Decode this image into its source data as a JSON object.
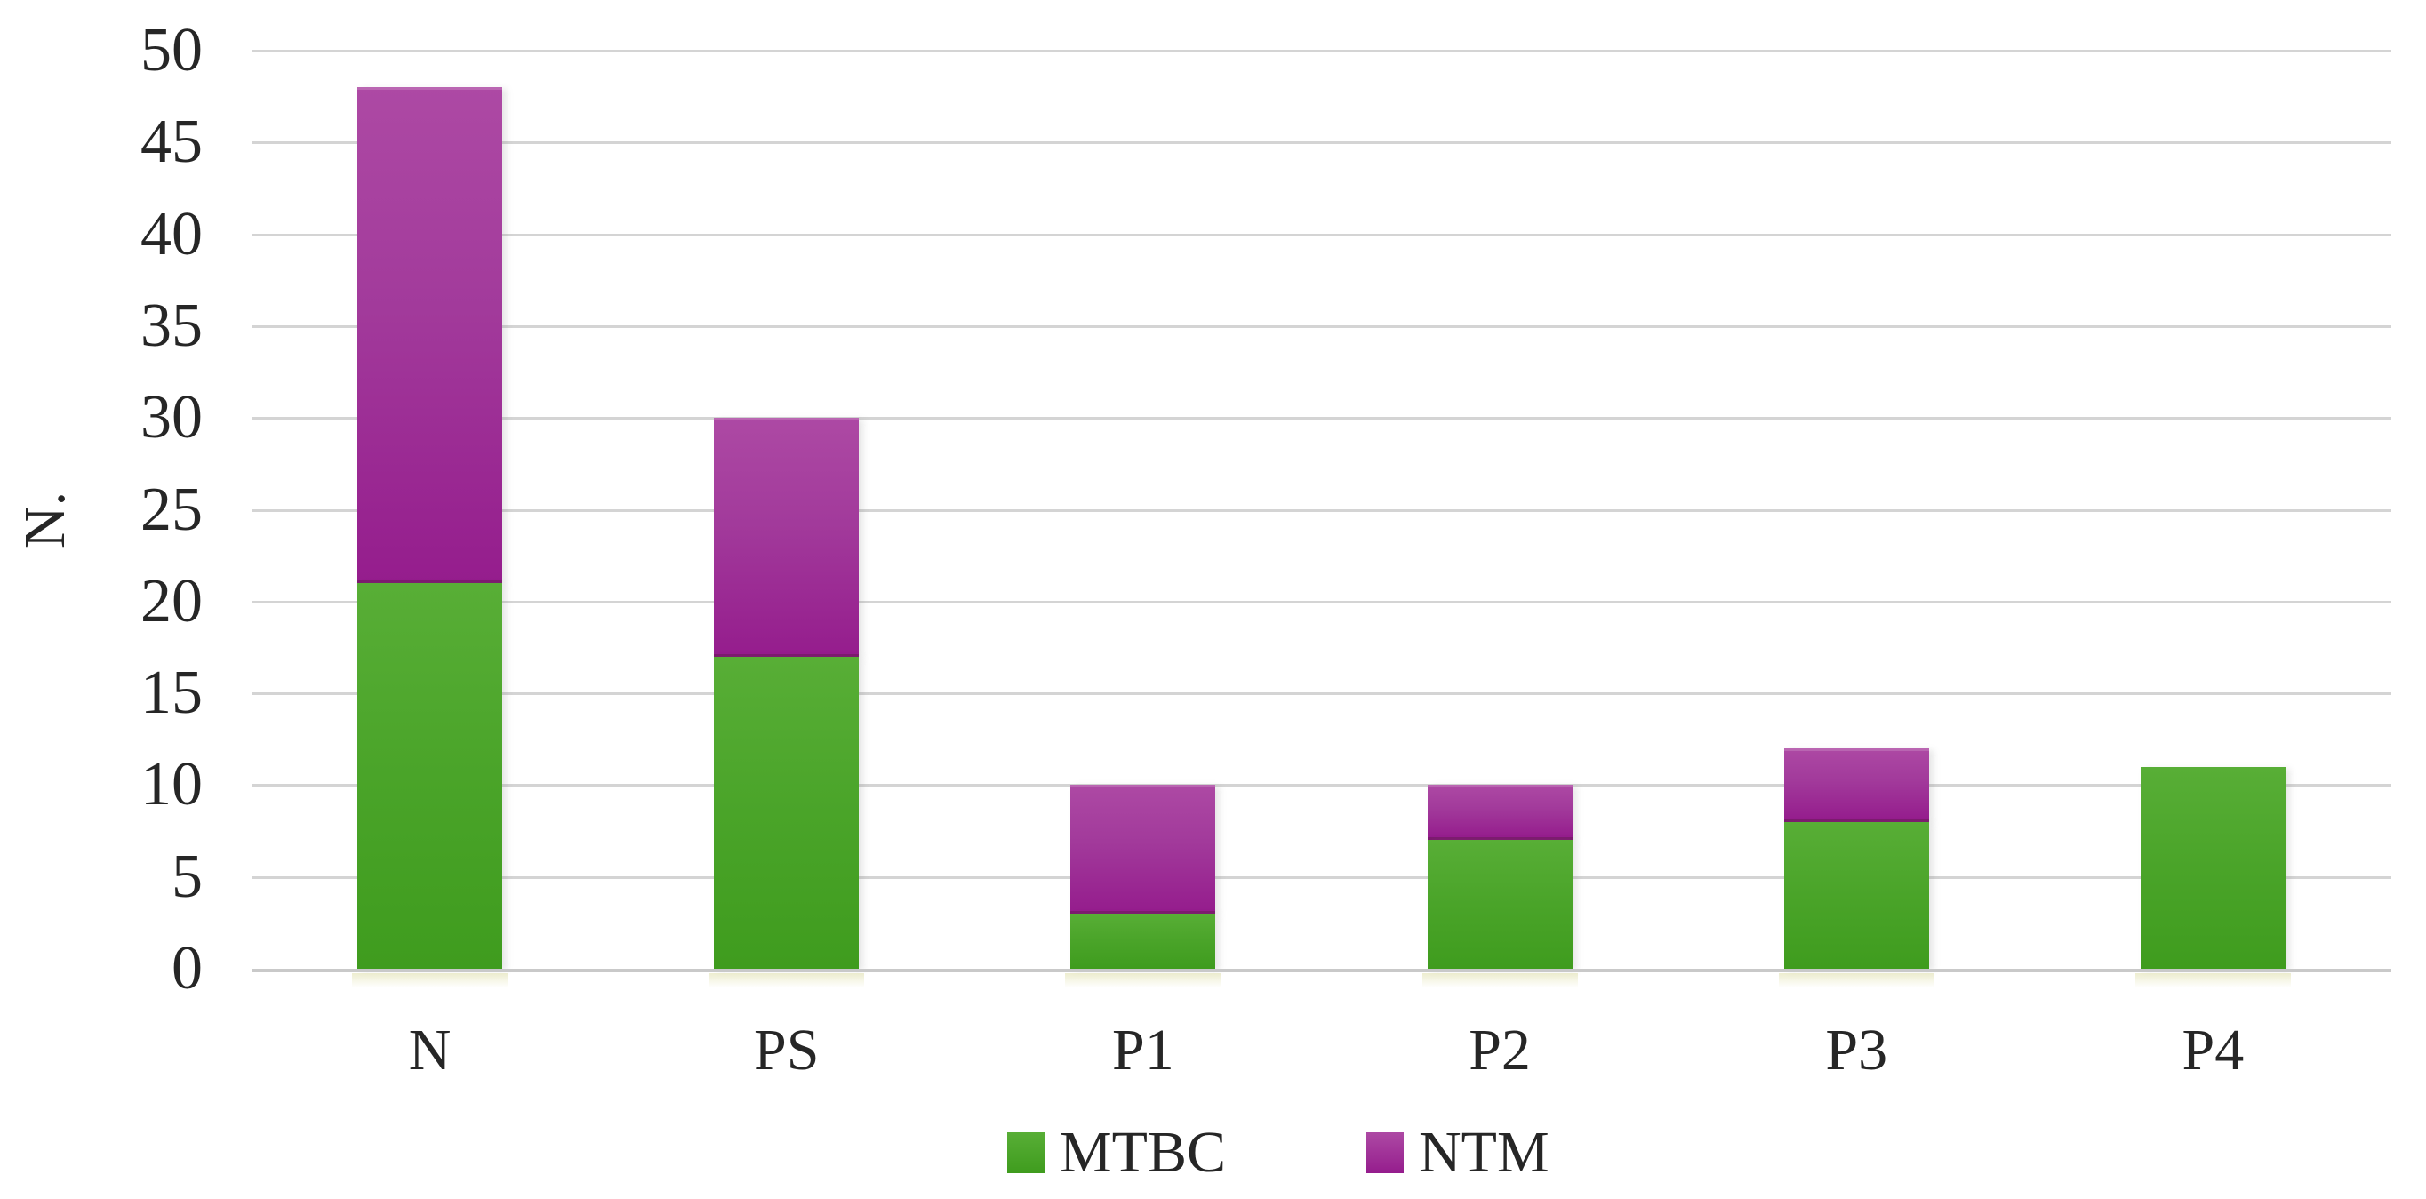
{
  "figure": {
    "background_color": "#ffffff",
    "text_color": "#262626",
    "grid_color": "#d4d4d4",
    "axis_line_color": "#c9c9c9"
  },
  "chart_data": {
    "type": "bar",
    "stacked": true,
    "title": "",
    "xlabel": "",
    "ylabel": "N.",
    "categories": [
      "N",
      "PS",
      "P1",
      "P2",
      "P3",
      "P4"
    ],
    "series": [
      {
        "name": "MTBC",
        "values": [
          21,
          17,
          3,
          7,
          8,
          11
        ],
        "color": "#4ca229",
        "gradient_top": "#58ae36",
        "gradient_bottom": "#3f9c1e"
      },
      {
        "name": "NTM",
        "values": [
          27,
          13,
          7,
          3,
          4,
          0
        ],
        "color": "#a23399",
        "gradient_top": "#ad49a4",
        "gradient_bottom": "#951d8d",
        "divider_color": "#7c1a6f"
      }
    ],
    "stack_totals": [
      48,
      30,
      10,
      10,
      12,
      11
    ],
    "ylim": [
      0,
      50
    ],
    "ytick_step": 5,
    "yticks": [
      0,
      5,
      10,
      15,
      20,
      25,
      30,
      35,
      40,
      45,
      50
    ],
    "grid": "horizontal",
    "legend_position": "bottom",
    "legend_entries": [
      "MTBC",
      "NTM"
    ]
  }
}
